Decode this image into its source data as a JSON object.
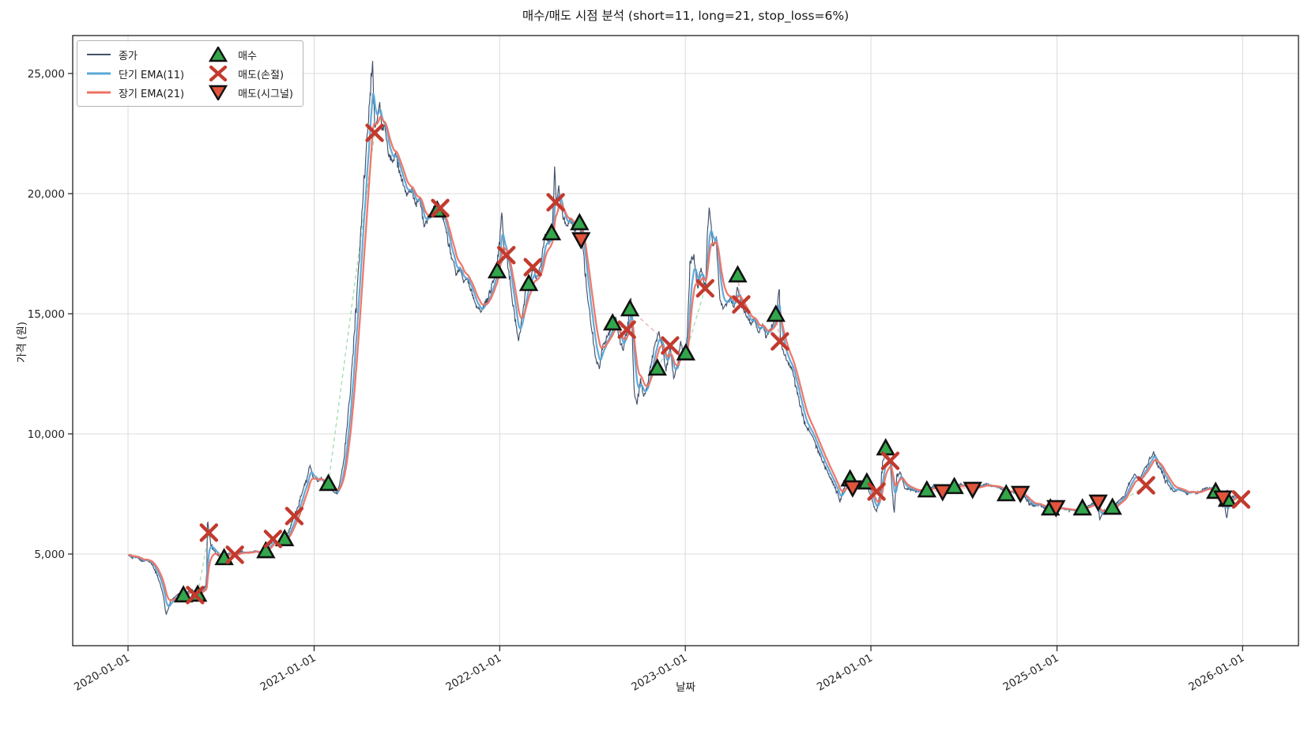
{
  "title": "매수/매도 시점 분석 (short=11, long=21, stop_loss=6%)",
  "colors": {
    "close": "#42526b",
    "ema_short": "#5aa7d8",
    "ema_long": "#ee7263",
    "buy_fill": "#33a64c",
    "sell_stop": "#c23a2e",
    "sell_signal_fill": "#e2543c",
    "marker_edge": "#111111",
    "grid": "#dcdcdc",
    "spine": "#1f1f1f",
    "tick_text": "#262626",
    "connector_profit": "#8fd6a0",
    "connector_loss": "#e8a29a"
  },
  "chart_data": {
    "type": "line",
    "title": "매수/매도 시점 분석 (short=11, long=21, stop_loss=6%)",
    "xlabel": "날짜",
    "ylabel": "가격 (원)",
    "params": {
      "short": 11,
      "long": 21,
      "stop_loss_pct": 6
    },
    "grid": true,
    "legend_position": "upper left",
    "legend": {
      "close": "종가",
      "ema_short": "단기 EMA(11)",
      "ema_long": "장기 EMA(21)",
      "buy": "매수",
      "sell_stop": "매도(손절)",
      "sell_signal": "매도(시그널)"
    },
    "x_ticks": [
      "2020-01-01",
      "2021-01-01",
      "2022-01-01",
      "2023-01-01",
      "2024-01-01",
      "2025-01-01",
      "2026-01-01"
    ],
    "y_ticks": [
      5000,
      10000,
      15000,
      20000,
      25000
    ],
    "y_tick_labels": [
      "5,000",
      "10,000",
      "15,000",
      "20,000",
      "25,000"
    ],
    "ylim": [
      1200,
      26600
    ],
    "ema_short_span": 11,
    "ema_long_span": 21,
    "close": [
      [
        "2020-01-02",
        4950
      ],
      [
        "2020-01-10",
        4830
      ],
      [
        "2020-01-17",
        4900
      ],
      [
        "2020-01-28",
        4700
      ],
      [
        "2020-02-06",
        4760
      ],
      [
        "2020-02-14",
        4650
      ],
      [
        "2020-02-21",
        4430
      ],
      [
        "2020-03-02",
        3900
      ],
      [
        "2020-03-09",
        3430
      ],
      [
        "2020-03-16",
        2480
      ],
      [
        "2020-03-20",
        2720
      ],
      [
        "2020-03-25",
        3060
      ],
      [
        "2020-04-02",
        3210
      ],
      [
        "2020-04-10",
        3360
      ],
      [
        "2020-04-19",
        3300
      ],
      [
        "2020-04-28",
        3430
      ],
      [
        "2020-05-06",
        3530
      ],
      [
        "2020-05-12",
        3310
      ],
      [
        "2020-05-18",
        3340
      ],
      [
        "2020-05-26",
        3490
      ],
      [
        "2020-06-02",
        3700
      ],
      [
        "2020-06-04",
        4300
      ],
      [
        "2020-06-05",
        6350
      ],
      [
        "2020-06-09",
        5860
      ],
      [
        "2020-06-12",
        5400
      ],
      [
        "2020-06-18",
        5140
      ],
      [
        "2020-06-25",
        4950
      ],
      [
        "2020-07-08",
        4840
      ],
      [
        "2020-07-17",
        5030
      ],
      [
        "2020-07-29",
        4970
      ],
      [
        "2020-08-10",
        5090
      ],
      [
        "2020-08-24",
        5050
      ],
      [
        "2020-09-07",
        5120
      ],
      [
        "2020-09-18",
        5060
      ],
      [
        "2020-09-28",
        5130
      ],
      [
        "2020-10-06",
        5390
      ],
      [
        "2020-10-12",
        5620
      ],
      [
        "2020-10-19",
        5500
      ],
      [
        "2020-10-27",
        5460
      ],
      [
        "2020-11-04",
        5630
      ],
      [
        "2020-11-12",
        5910
      ],
      [
        "2020-11-23",
        6580
      ],
      [
        "2020-12-01",
        7010
      ],
      [
        "2020-12-09",
        7620
      ],
      [
        "2020-12-17",
        8110
      ],
      [
        "2020-12-24",
        8720
      ],
      [
        "2020-12-31",
        8190
      ],
      [
        "2021-01-08",
        8010
      ],
      [
        "2021-01-15",
        8160
      ],
      [
        "2021-01-22",
        7950
      ],
      [
        "2021-01-29",
        7930
      ],
      [
        "2021-02-08",
        7590
      ],
      [
        "2021-02-16",
        7490
      ],
      [
        "2021-02-24",
        8320
      ],
      [
        "2021-03-04",
        9620
      ],
      [
        "2021-03-12",
        11500
      ],
      [
        "2021-03-22",
        14500
      ],
      [
        "2021-03-30",
        17200
      ],
      [
        "2021-04-07",
        19800
      ],
      [
        "2021-04-15",
        22300
      ],
      [
        "2021-04-22",
        24300
      ],
      [
        "2021-04-26",
        25450
      ],
      [
        "2021-04-28",
        23800
      ],
      [
        "2021-04-30",
        22530
      ],
      [
        "2021-05-06",
        23200
      ],
      [
        "2021-05-10",
        23780
      ],
      [
        "2021-05-14",
        22600
      ],
      [
        "2021-05-20",
        22850
      ],
      [
        "2021-05-27",
        21700
      ],
      [
        "2021-06-04",
        21300
      ],
      [
        "2021-06-11",
        21650
      ],
      [
        "2021-06-18",
        20900
      ],
      [
        "2021-06-25",
        20400
      ],
      [
        "2021-07-02",
        19900
      ],
      [
        "2021-07-12",
        20200
      ],
      [
        "2021-07-20",
        19500
      ],
      [
        "2021-07-28",
        19830
      ],
      [
        "2021-08-05",
        18600
      ],
      [
        "2021-08-13",
        18950
      ],
      [
        "2021-08-23",
        19300
      ],
      [
        "2021-09-01",
        19420
      ],
      [
        "2021-09-07",
        19380
      ],
      [
        "2021-09-13",
        18850
      ],
      [
        "2021-09-20",
        18200
      ],
      [
        "2021-09-27",
        17500
      ],
      [
        "2021-10-04",
        17080
      ],
      [
        "2021-10-08",
        16600
      ],
      [
        "2021-10-15",
        16950
      ],
      [
        "2021-10-22",
        16300
      ],
      [
        "2021-10-29",
        16450
      ],
      [
        "2021-11-05",
        16050
      ],
      [
        "2021-11-12",
        15600
      ],
      [
        "2021-11-19",
        15200
      ],
      [
        "2021-11-26",
        15130
      ],
      [
        "2021-12-03",
        15420
      ],
      [
        "2021-12-10",
        15700
      ],
      [
        "2021-12-17",
        16300
      ],
      [
        "2021-12-27",
        16800
      ],
      [
        "2022-01-05",
        19240
      ],
      [
        "2022-01-10",
        17600
      ],
      [
        "2022-01-14",
        17440
      ],
      [
        "2022-01-21",
        16400
      ],
      [
        "2022-01-28",
        15200
      ],
      [
        "2022-02-07",
        13860
      ],
      [
        "2022-02-15",
        15000
      ],
      [
        "2022-02-22",
        16220
      ],
      [
        "2022-03-02",
        16400
      ],
      [
        "2022-03-07",
        16900
      ],
      [
        "2022-03-14",
        16500
      ],
      [
        "2022-03-23",
        17000
      ],
      [
        "2022-03-31",
        18290
      ],
      [
        "2022-04-08",
        17900
      ],
      [
        "2022-04-14",
        18400
      ],
      [
        "2022-04-19",
        20990
      ],
      [
        "2022-04-22",
        19640
      ],
      [
        "2022-04-27",
        20270
      ],
      [
        "2022-05-04",
        19200
      ],
      [
        "2022-05-12",
        18620
      ],
      [
        "2022-05-20",
        18950
      ],
      [
        "2022-05-27",
        18420
      ],
      [
        "2022-06-07",
        18800
      ],
      [
        "2022-06-13",
        17900
      ],
      [
        "2022-06-17",
        16880
      ],
      [
        "2022-06-24",
        15460
      ],
      [
        "2022-07-01",
        14340
      ],
      [
        "2022-07-08",
        13200
      ],
      [
        "2022-07-15",
        12760
      ],
      [
        "2022-07-22",
        13590
      ],
      [
        "2022-08-01",
        14080
      ],
      [
        "2022-08-08",
        14340
      ],
      [
        "2022-08-12",
        14620
      ],
      [
        "2022-08-18",
        14800
      ],
      [
        "2022-08-25",
        13860
      ],
      [
        "2022-09-01",
        13490
      ],
      [
        "2022-09-08",
        14340
      ],
      [
        "2022-09-14",
        15250
      ],
      [
        "2022-09-16",
        15890
      ],
      [
        "2022-09-20",
        13400
      ],
      [
        "2022-09-22",
        11710
      ],
      [
        "2022-09-28",
        11280
      ],
      [
        "2022-10-05",
        12270
      ],
      [
        "2022-10-11",
        11510
      ],
      [
        "2022-10-19",
        12100
      ],
      [
        "2022-10-27",
        13000
      ],
      [
        "2022-11-03",
        13800
      ],
      [
        "2022-11-10",
        14240
      ],
      [
        "2022-11-17",
        13600
      ],
      [
        "2022-11-24",
        12630
      ],
      [
        "2022-12-02",
        13680
      ],
      [
        "2022-12-09",
        12320
      ],
      [
        "2022-12-16",
        12800
      ],
      [
        "2022-12-23",
        13900
      ],
      [
        "2022-12-29",
        13150
      ],
      [
        "2023-01-03",
        13400
      ],
      [
        "2023-01-11",
        17210
      ],
      [
        "2023-01-18",
        17370
      ],
      [
        "2023-01-25",
        16000
      ],
      [
        "2023-02-01",
        16880
      ],
      [
        "2023-02-09",
        16100
      ],
      [
        "2023-02-17",
        19510
      ],
      [
        "2023-02-24",
        17860
      ],
      [
        "2023-03-03",
        18030
      ],
      [
        "2023-03-10",
        15560
      ],
      [
        "2023-03-17",
        15230
      ],
      [
        "2023-03-24",
        15460
      ],
      [
        "2023-03-31",
        15660
      ],
      [
        "2023-04-07",
        15230
      ],
      [
        "2023-04-14",
        16100
      ],
      [
        "2023-04-21",
        15390
      ],
      [
        "2023-04-28",
        15070
      ],
      [
        "2023-05-10",
        14570
      ],
      [
        "2023-05-17",
        14800
      ],
      [
        "2023-05-25",
        14240
      ],
      [
        "2023-06-02",
        14570
      ],
      [
        "2023-06-09",
        14010
      ],
      [
        "2023-06-16",
        14340
      ],
      [
        "2023-06-23",
        14600
      ],
      [
        "2023-06-29",
        14970
      ],
      [
        "2023-07-05",
        16220
      ],
      [
        "2023-07-07",
        13850
      ],
      [
        "2023-07-14",
        13350
      ],
      [
        "2023-07-21",
        13020
      ],
      [
        "2023-08-01",
        12530
      ],
      [
        "2023-08-08",
        11840
      ],
      [
        "2023-08-15",
        11180
      ],
      [
        "2023-08-22",
        10520
      ],
      [
        "2023-08-30",
        10190
      ],
      [
        "2023-09-06",
        9960
      ],
      [
        "2023-09-12",
        9730
      ],
      [
        "2023-09-19",
        9300
      ],
      [
        "2023-09-25",
        8980
      ],
      [
        "2023-10-04",
        8600
      ],
      [
        "2023-10-12",
        8200
      ],
      [
        "2023-10-20",
        7900
      ],
      [
        "2023-10-27",
        7550
      ],
      [
        "2023-11-01",
        7170
      ],
      [
        "2023-11-08",
        7700
      ],
      [
        "2023-11-15",
        7990
      ],
      [
        "2023-11-21",
        8120
      ],
      [
        "2023-11-28",
        7850
      ],
      [
        "2023-12-06",
        7800
      ],
      [
        "2023-12-14",
        7900
      ],
      [
        "2023-12-22",
        7990
      ],
      [
        "2024-01-03",
        7300
      ],
      [
        "2024-01-08",
        6910
      ],
      [
        "2024-01-12",
        6780
      ],
      [
        "2024-01-19",
        7500
      ],
      [
        "2024-01-24",
        8750
      ],
      [
        "2024-01-29",
        9140
      ],
      [
        "2024-02-02",
        8950
      ],
      [
        "2024-02-08",
        8880
      ],
      [
        "2024-02-14",
        7070
      ],
      [
        "2024-02-16",
        6750
      ],
      [
        "2024-02-21",
        8260
      ],
      [
        "2024-02-28",
        8390
      ],
      [
        "2024-03-07",
        7760
      ],
      [
        "2024-03-15",
        7700
      ],
      [
        "2024-03-25",
        7650
      ],
      [
        "2024-04-03",
        7600
      ],
      [
        "2024-04-12",
        7660
      ],
      [
        "2024-04-22",
        7680
      ],
      [
        "2024-05-02",
        7800
      ],
      [
        "2024-05-10",
        7750
      ],
      [
        "2024-05-21",
        7620
      ],
      [
        "2024-05-31",
        7660
      ],
      [
        "2024-06-13",
        7800
      ],
      [
        "2024-06-24",
        7900
      ],
      [
        "2024-07-05",
        7850
      ],
      [
        "2024-07-19",
        7700
      ],
      [
        "2024-08-01",
        7800
      ],
      [
        "2024-08-14",
        7900
      ],
      [
        "2024-08-27",
        7830
      ],
      [
        "2024-09-09",
        7760
      ],
      [
        "2024-09-23",
        7520
      ],
      [
        "2024-10-04",
        7600
      ],
      [
        "2024-10-14",
        7560
      ],
      [
        "2024-10-21",
        7530
      ],
      [
        "2024-11-01",
        7300
      ],
      [
        "2024-11-08",
        7100
      ],
      [
        "2024-11-18",
        7010
      ],
      [
        "2024-11-27",
        7070
      ],
      [
        "2024-12-09",
        6900
      ],
      [
        "2024-12-19",
        6900
      ],
      [
        "2024-12-22",
        6740
      ],
      [
        "2024-12-30",
        6940
      ],
      [
        "2025-01-10",
        6900
      ],
      [
        "2025-01-22",
        6850
      ],
      [
        "2025-02-03",
        6800
      ],
      [
        "2025-02-12",
        6870
      ],
      [
        "2025-02-20",
        6910
      ],
      [
        "2025-03-04",
        7000
      ],
      [
        "2025-03-12",
        7100
      ],
      [
        "2025-03-21",
        7170
      ],
      [
        "2025-03-26",
        6450
      ],
      [
        "2025-04-04",
        6800
      ],
      [
        "2025-04-14",
        6900
      ],
      [
        "2025-04-22",
        6950
      ],
      [
        "2025-05-02",
        7200
      ],
      [
        "2025-05-14",
        7430
      ],
      [
        "2025-05-22",
        7890
      ],
      [
        "2025-06-02",
        8320
      ],
      [
        "2025-06-12",
        8100
      ],
      [
        "2025-06-20",
        8500
      ],
      [
        "2025-06-27",
        8700
      ],
      [
        "2025-07-04",
        9000
      ],
      [
        "2025-07-10",
        9240
      ],
      [
        "2025-07-18",
        8700
      ],
      [
        "2025-07-25",
        8490
      ],
      [
        "2025-08-01",
        8100
      ],
      [
        "2025-08-08",
        7890
      ],
      [
        "2025-08-18",
        7600
      ],
      [
        "2025-08-27",
        7700
      ],
      [
        "2025-09-05",
        7650
      ],
      [
        "2025-09-15",
        7500
      ],
      [
        "2025-09-24",
        7600
      ],
      [
        "2025-10-03",
        7550
      ],
      [
        "2025-10-13",
        7650
      ],
      [
        "2025-10-23",
        7760
      ],
      [
        "2025-11-03",
        7700
      ],
      [
        "2025-11-10",
        7640
      ],
      [
        "2025-11-17",
        7500
      ],
      [
        "2025-11-24",
        7380
      ],
      [
        "2025-12-01",
        6450
      ],
      [
        "2025-12-05",
        7200
      ],
      [
        "2025-12-12",
        7400
      ],
      [
        "2025-12-19",
        7500
      ],
      [
        "2025-12-26",
        7350
      ],
      [
        "2026-01-02",
        7100
      ]
    ],
    "markers": {
      "buy": [
        [
          "2020-04-19",
          3290
        ],
        [
          "2020-05-17",
          3320
        ],
        [
          "2020-07-08",
          4840
        ],
        [
          "2020-09-28",
          5130
        ],
        [
          "2020-11-04",
          5630
        ],
        [
          "2021-01-29",
          7930
        ],
        [
          "2021-08-31",
          19310
        ],
        [
          "2021-12-27",
          16780
        ],
        [
          "2022-02-27",
          16250
        ],
        [
          "2022-04-13",
          18360
        ],
        [
          "2022-06-07",
          18780
        ],
        [
          "2022-08-11",
          14610
        ],
        [
          "2022-09-14",
          15200
        ],
        [
          "2022-11-07",
          12730
        ],
        [
          "2023-01-02",
          13360
        ],
        [
          "2023-04-14",
          16610
        ],
        [
          "2023-06-28",
          14970
        ],
        [
          "2023-11-21",
          8120
        ],
        [
          "2023-12-24",
          7990
        ],
        [
          "2024-01-30",
          9410
        ],
        [
          "2024-04-20",
          7660
        ],
        [
          "2024-06-13",
          7800
        ],
        [
          "2024-09-23",
          7500
        ],
        [
          "2024-12-19",
          6910
        ],
        [
          "2025-02-20",
          6910
        ],
        [
          "2025-04-20",
          6940
        ],
        [
          "2025-11-09",
          7600
        ],
        [
          "2025-12-02",
          7270
        ]
      ],
      "sell_stop": [
        [
          "2020-05-12",
          3290
        ],
        [
          "2020-06-08",
          5890
        ],
        [
          "2020-07-29",
          4970
        ],
        [
          "2020-10-12",
          5625
        ],
        [
          "2020-11-23",
          6580
        ],
        [
          "2021-04-30",
          22530
        ],
        [
          "2021-09-06",
          19400
        ],
        [
          "2022-01-14",
          17440
        ],
        [
          "2022-03-07",
          16940
        ],
        [
          "2022-04-21",
          19640
        ],
        [
          "2022-09-08",
          14340
        ],
        [
          "2022-12-02",
          13680
        ],
        [
          "2023-02-09",
          16060
        ],
        [
          "2023-04-21",
          15390
        ],
        [
          "2023-07-06",
          13850
        ],
        [
          "2024-01-12",
          7600
        ],
        [
          "2024-02-08",
          8880
        ],
        [
          "2025-06-25",
          7860
        ],
        [
          "2025-12-29",
          7270
        ]
      ],
      "sell_signal": [
        [
          "2022-06-10",
          18090
        ],
        [
          "2023-11-26",
          7760
        ],
        [
          "2024-05-21",
          7600
        ],
        [
          "2024-07-19",
          7700
        ],
        [
          "2024-10-21",
          7530
        ],
        [
          "2024-12-30",
          6940
        ],
        [
          "2025-03-23",
          7170
        ],
        [
          "2025-11-23",
          7340
        ]
      ]
    }
  }
}
